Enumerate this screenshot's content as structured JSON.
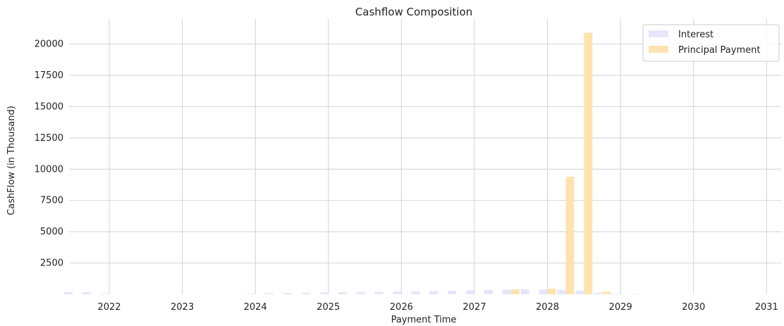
{
  "chart_data": {
    "type": "bar",
    "title": "Cashflow Composition",
    "xlabel": "Payment Time",
    "ylabel": "CashFlow (in Thousand)",
    "xlim": [
      2021.45,
      2031.2
    ],
    "ylim": [
      0,
      22000
    ],
    "x_ticks": [
      2022,
      2023,
      2024,
      2025,
      2026,
      2027,
      2028,
      2029,
      2030,
      2031
    ],
    "x_tick_labels": [
      "2022",
      "2023",
      "2024",
      "2025",
      "2026",
      "2027",
      "2028",
      "2029",
      "2030",
      "2031"
    ],
    "y_ticks": [
      2500,
      5000,
      7500,
      10000,
      12500,
      15000,
      17500,
      20000
    ],
    "y_tick_labels": [
      "2500",
      "5000",
      "7500",
      "10000",
      "12500",
      "15000",
      "17500",
      "20000"
    ],
    "grid": true,
    "legend_position": "top-right",
    "series": [
      {
        "name": "Interest",
        "color": "#e6e6fa",
        "x": [
          2021.5,
          2021.75,
          2022.0,
          2024.0,
          2024.25,
          2024.5,
          2024.75,
          2025.0,
          2025.25,
          2025.5,
          2025.75,
          2026.0,
          2026.25,
          2026.5,
          2026.75,
          2027.0,
          2027.25,
          2027.5,
          2027.75,
          2028.0,
          2028.25,
          2028.5,
          2028.75,
          2029.0,
          2029.25
        ],
        "values": [
          180,
          170,
          60,
          60,
          90,
          110,
          130,
          150,
          170,
          190,
          200,
          220,
          240,
          260,
          290,
          320,
          350,
          380,
          400,
          390,
          350,
          300,
          120,
          60,
          40
        ]
      },
      {
        "name": "Principal Payment",
        "color": "#fde3b0",
        "x": [
          2027.5,
          2028.0,
          2028.25,
          2028.5,
          2028.75
        ],
        "values": [
          400,
          450,
          9400,
          20900,
          200
        ]
      }
    ]
  }
}
